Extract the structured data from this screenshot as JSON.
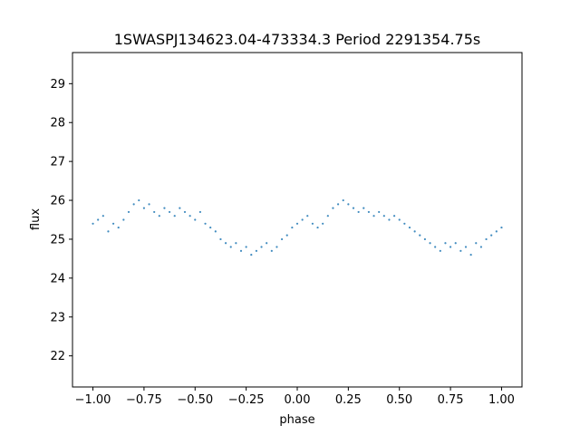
{
  "chart_data": {
    "type": "scatter",
    "title": "1SWASPJ134623.04-473334.3 Period 2291354.75s",
    "xlabel": "phase",
    "ylabel": "flux",
    "xlim": [
      -1.1,
      1.1
    ],
    "ylim": [
      21.2,
      29.8
    ],
    "xticks": [
      -1.0,
      -0.75,
      -0.5,
      -0.25,
      0.0,
      0.25,
      0.5,
      0.75,
      1.0
    ],
    "xtick_labels": [
      "−1.00",
      "−0.75",
      "−0.50",
      "−0.25",
      "0.00",
      "0.25",
      "0.50",
      "0.75",
      "1.00"
    ],
    "yticks": [
      22,
      23,
      24,
      25,
      26,
      27,
      28,
      29
    ],
    "ytick_labels": [
      "22",
      "23",
      "24",
      "25",
      "26",
      "27",
      "28",
      "29"
    ],
    "grid": false,
    "legend": "none",
    "series": [
      {
        "color": "#1f77b4",
        "x": [
          -1.0,
          -0.975,
          -0.95,
          -0.925,
          -0.9,
          -0.875,
          -0.85,
          -0.825,
          -0.8,
          -0.775,
          -0.75,
          -0.725,
          -0.7,
          -0.675,
          -0.65,
          -0.625,
          -0.6,
          -0.575,
          -0.55,
          -0.525,
          -0.5,
          -0.475,
          -0.45,
          -0.425,
          -0.4,
          -0.375,
          -0.35,
          -0.325,
          -0.3,
          -0.275,
          -0.25,
          -0.225,
          -0.2,
          -0.175,
          -0.15,
          -0.125,
          -0.1,
          -0.075,
          -0.05,
          -0.025,
          0.0,
          0.025,
          0.05,
          0.075,
          0.1,
          0.125,
          0.15,
          0.175,
          0.2,
          0.225,
          0.25,
          0.275,
          0.3,
          0.325,
          0.35,
          0.375,
          0.4,
          0.425,
          0.45,
          0.475,
          0.5,
          0.525,
          0.55,
          0.575,
          0.6,
          0.625,
          0.65,
          0.675,
          0.7,
          0.725,
          0.75,
          0.775,
          0.8,
          0.825,
          0.85,
          0.875,
          0.9,
          0.925,
          0.95,
          0.975,
          1.0
        ],
        "y": [
          25.4,
          25.5,
          25.6,
          25.2,
          25.4,
          25.3,
          25.5,
          25.7,
          25.9,
          26.0,
          25.8,
          25.9,
          25.7,
          25.6,
          25.8,
          25.7,
          25.6,
          25.8,
          25.7,
          25.6,
          25.5,
          25.7,
          25.4,
          25.3,
          25.2,
          25.0,
          24.9,
          24.8,
          24.9,
          24.7,
          24.8,
          24.6,
          24.7,
          24.8,
          24.9,
          24.7,
          24.8,
          25.0,
          25.1,
          25.3,
          25.4,
          25.5,
          25.6,
          25.4,
          25.3,
          25.4,
          25.6,
          25.8,
          25.9,
          26.0,
          25.9,
          25.8,
          25.7,
          25.8,
          25.7,
          25.6,
          25.7,
          25.6,
          25.5,
          25.6,
          25.5,
          25.4,
          25.3,
          25.2,
          25.1,
          25.0,
          24.9,
          24.8,
          24.7,
          24.9,
          24.8,
          24.9,
          24.7,
          24.8,
          24.6,
          24.9,
          24.8,
          25.0,
          25.1,
          25.2,
          25.3
        ]
      }
    ]
  }
}
